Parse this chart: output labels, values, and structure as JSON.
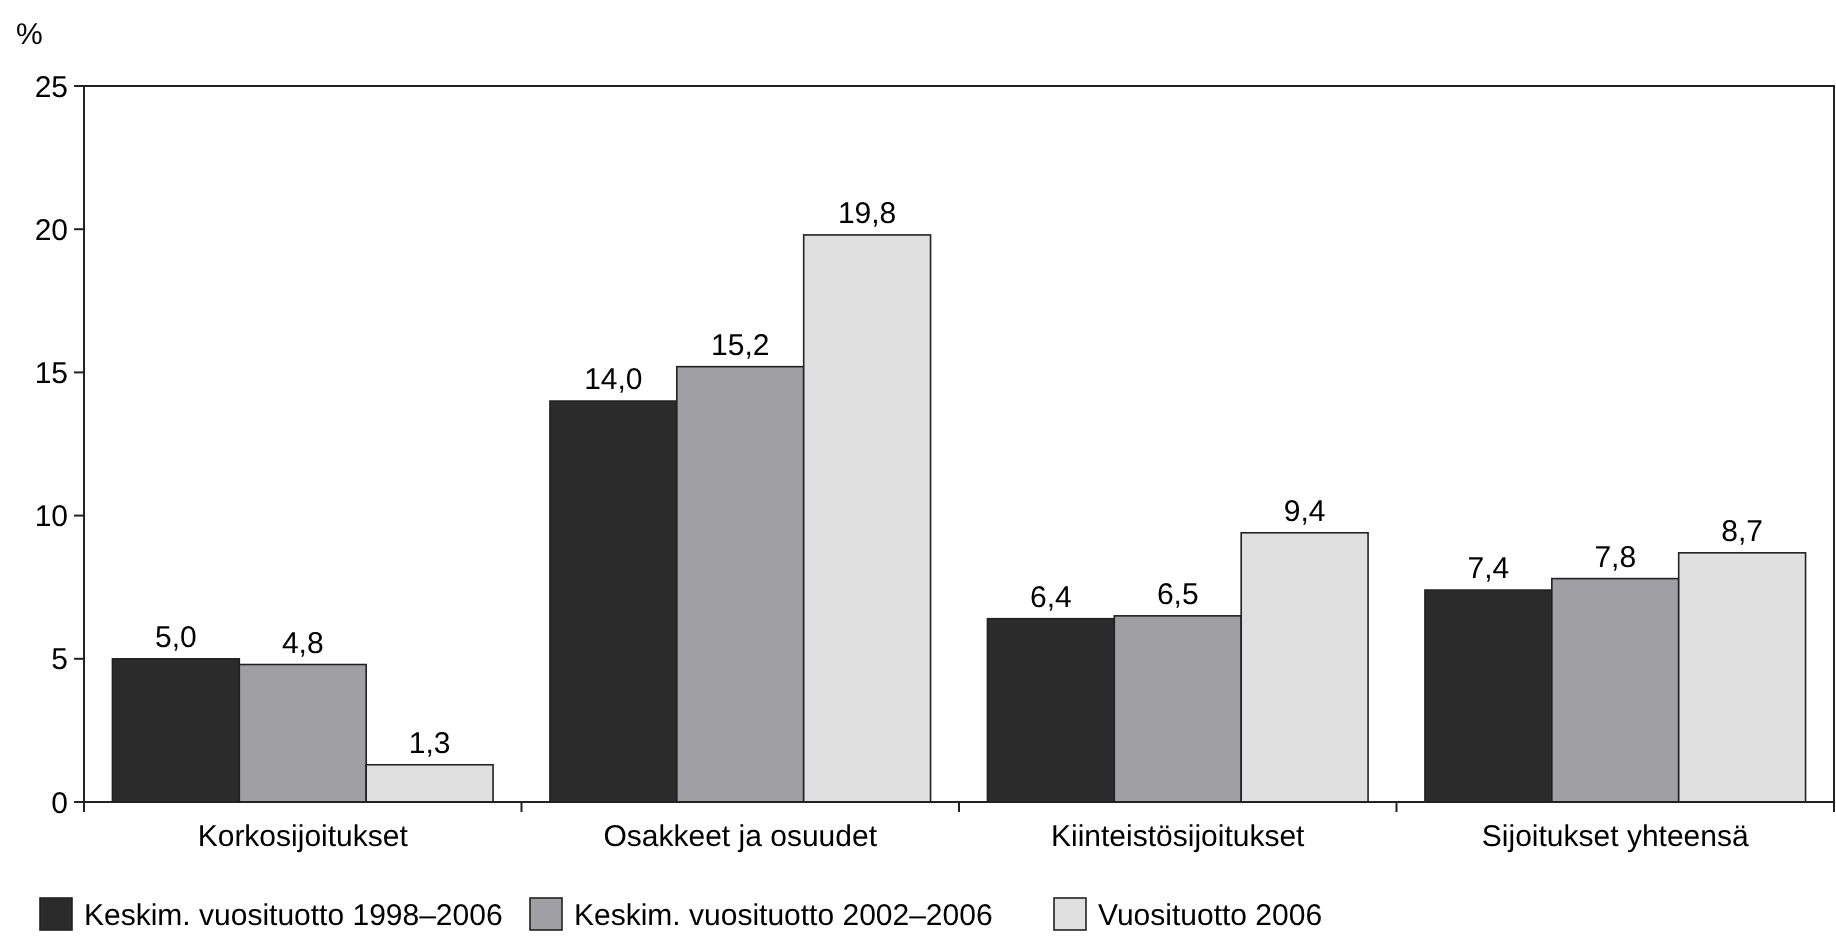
{
  "chart_data": {
    "type": "bar",
    "ylabel": "%",
    "categories": [
      "Korkosijoitukset",
      "Osakkeet ja osuudet",
      "Kiinteistösijoitukset",
      "Sijoitukset yhteensä"
    ],
    "series": [
      {
        "name": "Keskim. vuosituotto 1998–2006",
        "color": "#2b2b2b",
        "values": [
          5.0,
          14.0,
          6.4,
          7.4
        ],
        "value_labels": [
          "5,0",
          "14,0",
          "6,4",
          "7,4"
        ]
      },
      {
        "name": "Keskim. vuosituotto 2002–2006",
        "color": "#a0a0a4",
        "values": [
          4.8,
          15.2,
          6.5,
          7.8
        ],
        "value_labels": [
          "4,8",
          "15,2",
          "6,5",
          "7,8"
        ]
      },
      {
        "name": "Vuosituotto 2006",
        "color": "#e0e0e0",
        "values": [
          1.3,
          19.8,
          9.4,
          8.7
        ],
        "value_labels": [
          "1,3",
          "19,8",
          "9,4",
          "8,7"
        ]
      }
    ],
    "ylim": [
      0,
      25
    ],
    "yticks": [
      0,
      5,
      10,
      15,
      20,
      25
    ],
    "grid": false,
    "legend": "bottom"
  }
}
